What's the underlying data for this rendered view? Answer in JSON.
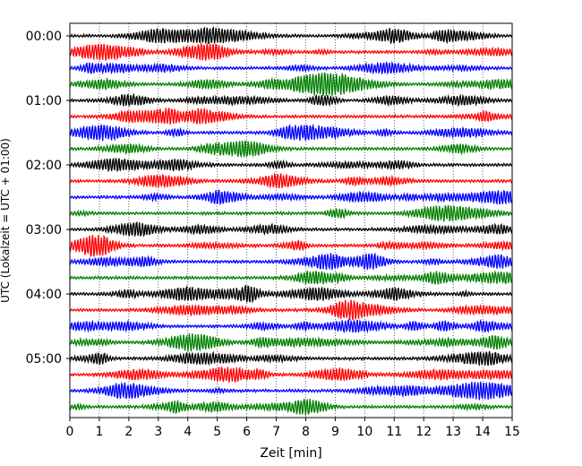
{
  "chart_data": {
    "type": "line",
    "subtype": "helicorder",
    "xlabel": "Zeit  [min]",
    "ylabel": "UTC (Lokalzeit = UTC + 01:00)",
    "xlim": [
      0,
      15
    ],
    "x_ticks": [
      "0",
      "1",
      "2",
      "3",
      "4",
      "5",
      "6",
      "7",
      "8",
      "9",
      "10",
      "11",
      "12",
      "13",
      "14",
      "15"
    ],
    "y_tick_labels": [
      "00:00",
      "01:00",
      "02:00",
      "03:00",
      "04:00",
      "05:00"
    ],
    "trace_interval_min": 15,
    "trace_start_times": [
      "00:00",
      "00:15",
      "00:30",
      "00:45",
      "01:00",
      "01:15",
      "01:30",
      "01:45",
      "02:00",
      "02:15",
      "02:30",
      "02:45",
      "03:00",
      "03:15",
      "03:30",
      "03:45",
      "04:00",
      "04:15",
      "04:30",
      "04:45",
      "05:00",
      "05:15",
      "05:30",
      "05:45"
    ],
    "colors": [
      "#000000",
      "#ff0000",
      "#0000ff",
      "#008000"
    ],
    "grid": "vertical dotted"
  }
}
